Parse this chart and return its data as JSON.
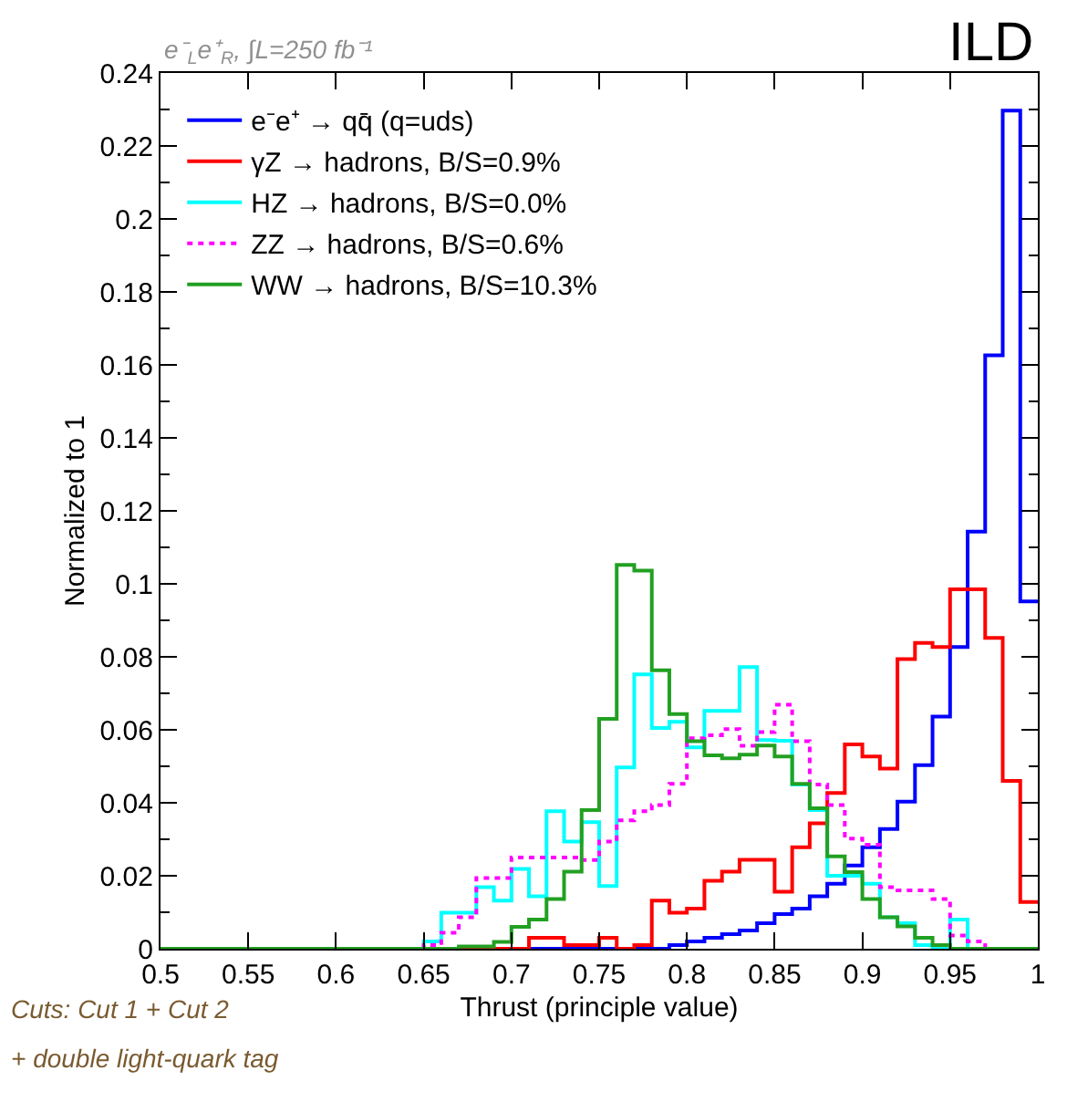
{
  "chart_data": {
    "type": "histogram",
    "xlabel": "Thrust (principle value)",
    "ylabel": "Normalized to 1",
    "annotations": [
      "e⁻$_{L}$e⁺$_{R}$, ∫L=250 fb⁻¹",
      "ILD",
      "Cuts: Cut 1 + Cut 2",
      "+ double light-quark tag"
    ],
    "bins": [
      0.5,
      0.51,
      0.52,
      0.53,
      0.54,
      0.55,
      0.56,
      0.57,
      0.58,
      0.59,
      0.6,
      0.61,
      0.62,
      0.63,
      0.64,
      0.65,
      0.66,
      0.67,
      0.68,
      0.69,
      0.7,
      0.71,
      0.72,
      0.73,
      0.74,
      0.75,
      0.76,
      0.77,
      0.78,
      0.79,
      0.8,
      0.81,
      0.82,
      0.83,
      0.84,
      0.85,
      0.86,
      0.87,
      0.88,
      0.89,
      0.9,
      0.91,
      0.92,
      0.93,
      0.94,
      0.95,
      0.96,
      0.97,
      0.98,
      0.99,
      1.0
    ],
    "series": [
      {
        "name": "e⁻e⁺ → qq̄ (q=uds)",
        "color": "#0000ff",
        "line_style": "solid",
        "values": [
          0,
          0,
          0,
          0,
          0,
          0,
          0,
          0,
          0,
          0,
          0,
          0,
          0,
          0,
          0,
          0,
          0,
          0,
          0,
          0,
          0,
          0,
          0,
          0,
          0,
          0,
          0,
          0,
          0,
          0.001,
          0.002,
          0.003,
          0.004,
          0.005,
          0.007,
          0.0095,
          0.011,
          0.0144,
          0.0178,
          0.0228,
          0.0278,
          0.0328,
          0.0403,
          0.0503,
          0.0636,
          0.0827,
          0.1143,
          0.1626,
          0.2297,
          0.0952
        ]
      },
      {
        "name": "γZ → hadrons, B/S=0.9%",
        "color": "#ff0000",
        "line_style": "solid",
        "values": [
          0,
          0,
          0,
          0,
          0,
          0,
          0,
          0,
          0,
          0,
          0,
          0,
          0,
          0,
          0,
          0,
          0,
          0,
          0,
          0,
          0,
          0.003,
          0.003,
          0.001,
          0.001,
          0.003,
          0,
          0.001,
          0.0132,
          0.0099,
          0.011,
          0.0186,
          0.0211,
          0.0244,
          0.0244,
          0.0156,
          0.0278,
          0.0344,
          0.0427,
          0.056,
          0.0527,
          0.0494,
          0.0794,
          0.0838,
          0.0827,
          0.0985,
          0.0985,
          0.0852,
          0.046,
          0.0128
        ]
      },
      {
        "name": "HZ → hadrons, B/S=0.0%",
        "color": "#00ffff",
        "line_style": "solid",
        "values": [
          0,
          0,
          0,
          0,
          0,
          0,
          0,
          0,
          0,
          0,
          0,
          0,
          0,
          0,
          0,
          0.002,
          0.0099,
          0.0099,
          0.0169,
          0.0132,
          0.0219,
          0.0144,
          0.0377,
          0.0294,
          0.0347,
          0.0172,
          0.0497,
          0.0752,
          0.0605,
          0.0622,
          0.0552,
          0.0652,
          0.0652,
          0.0772,
          0.0572,
          0.057,
          0.045,
          0.038,
          0.02,
          0.02,
          0.0178,
          0.0086,
          0.007,
          0.001,
          0,
          0.008,
          0,
          0,
          0,
          0
        ]
      },
      {
        "name": "ZZ → hadrons, B/S=0.6%",
        "color": "#ff00ff",
        "line_style": "dotted",
        "values": [
          0,
          0,
          0,
          0,
          0,
          0,
          0,
          0,
          0,
          0,
          0,
          0,
          0,
          0,
          0,
          0.001,
          0.0044,
          0.0086,
          0.0194,
          0.0194,
          0.025,
          0.025,
          0.025,
          0.025,
          0.0243,
          0.0294,
          0.0352,
          0.0377,
          0.0394,
          0.0452,
          0.0577,
          0.0585,
          0.0602,
          0.0556,
          0.0594,
          0.0669,
          0.0569,
          0.045,
          0.0394,
          0.0302,
          0.0285,
          0.0169,
          0.016,
          0.016,
          0.0136,
          0.0036,
          0.002,
          0,
          0,
          0
        ]
      },
      {
        "name": "WW → hadrons, B/S=10.3%",
        "color": "#22a022",
        "line_style": "solid",
        "values": [
          0,
          0,
          0,
          0,
          0,
          0,
          0,
          0,
          0,
          0,
          0,
          0,
          0,
          0,
          0,
          0,
          0,
          0.0006,
          0.0006,
          0.0019,
          0.006,
          0.008,
          0.0136,
          0.0211,
          0.038,
          0.063,
          0.1052,
          0.1036,
          0.0763,
          0.0643,
          0.0569,
          0.053,
          0.0522,
          0.0532,
          0.0557,
          0.0527,
          0.0452,
          0.0385,
          0.0253,
          0.021,
          0.0136,
          0.0086,
          0.0061,
          0.003,
          0.001,
          0,
          0,
          0,
          0,
          0
        ]
      }
    ],
    "xlim": [
      0.5,
      1.0
    ],
    "xticks": [
      0.5,
      0.55,
      0.6,
      0.65,
      0.7,
      0.75,
      0.8,
      0.85,
      0.9,
      0.95,
      1
    ],
    "ylim": [
      0,
      0.24
    ],
    "yticks": [
      0,
      0.02,
      0.04,
      0.06,
      0.08,
      0.1,
      0.12,
      0.14,
      0.16,
      0.18,
      0.2,
      0.22,
      0.24
    ],
    "legend": "top left"
  }
}
